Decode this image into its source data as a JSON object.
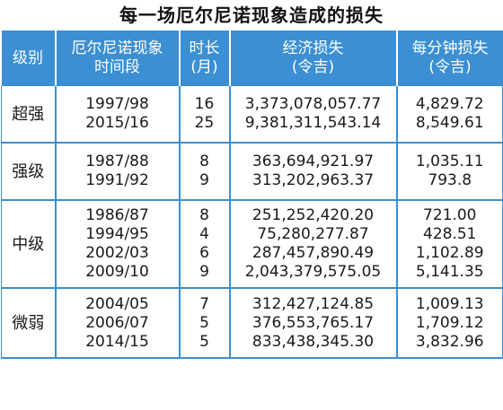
{
  "title": "每一场厄尔尼诺现象造成的损失",
  "table": {
    "headers": {
      "level": "级别",
      "period_line1": "厄尔尼诺现象",
      "period_line2": "时间段",
      "months_line1": "时长",
      "months_line2": "(月)",
      "loss_line1": "经济损失",
      "loss_line2": "(令吉)",
      "perminute_line1": "每分钟损失",
      "perminute_line2": "(令吉)"
    },
    "groups": [
      {
        "level": "超强",
        "rows": [
          {
            "period": "1997/98",
            "months": "16",
            "loss": "3,373,078,057.77",
            "perminute": "4,829.72"
          },
          {
            "period": "2015/16",
            "months": "25",
            "loss": "9,381,311,543.14",
            "perminute": "8,549.61"
          }
        ]
      },
      {
        "level": "强级",
        "rows": [
          {
            "period": "1987/88",
            "months": "8",
            "loss": "363,694,921.97",
            "perminute": "1,035.11"
          },
          {
            "period": "1991/92",
            "months": "9",
            "loss": "313,202,963.37",
            "perminute": "793.8"
          }
        ]
      },
      {
        "level": "中级",
        "rows": [
          {
            "period": "1986/87",
            "months": "8",
            "loss": "251,252,420.20",
            "perminute": "721.00"
          },
          {
            "period": "1994/95",
            "months": "4",
            "loss": "75,280,277.87",
            "perminute": "428.51"
          },
          {
            "period": "2002/03",
            "months": "6",
            "loss": "287,457,890.49",
            "perminute": "1,102.89"
          },
          {
            "period": "2009/10",
            "months": "9",
            "loss": "2,043,379,575.05",
            "perminute": "5,141.35"
          }
        ]
      },
      {
        "level": "微弱",
        "rows": [
          {
            "period": "2004/05",
            "months": "7",
            "loss": "312,427,124.85",
            "perminute": "1,009.13"
          },
          {
            "period": "2006/07",
            "months": "5",
            "loss": "376,553,765.17",
            "perminute": "1,709.12"
          },
          {
            "period": "2014/15",
            "months": "5",
            "loss": "833,438,345.30",
            "perminute": "3,832.96"
          }
        ]
      }
    ],
    "colors": {
      "header_bg": "#3b8fd2",
      "header_text": "#ffffff",
      "grid": "#3b8fd2"
    }
  }
}
